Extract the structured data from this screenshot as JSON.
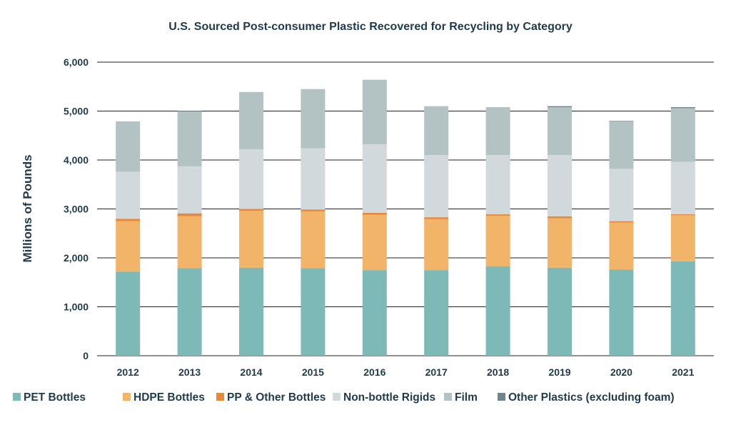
{
  "chart_data": {
    "type": "bar",
    "stacked": true,
    "title": "U.S. Sourced Post-consumer Plastic Recovered for Recycling by Category",
    "ylabel": "Millions of Pounds",
    "xlabel": "",
    "ylim": [
      0,
      6000
    ],
    "yticks": [
      0,
      1000,
      2000,
      3000,
      4000,
      5000,
      6000
    ],
    "ytick_labels": [
      "0",
      "1,000",
      "2,000",
      "3,000",
      "4,000",
      "5,000",
      "6,000"
    ],
    "grid": true,
    "legend_position": "bottom",
    "categories": [
      "2012",
      "2013",
      "2014",
      "2015",
      "2016",
      "2017",
      "2018",
      "2019",
      "2020",
      "2021"
    ],
    "series": [
      {
        "name": "PET Bottles",
        "color": "#7db9b6",
        "values": [
          1720,
          1790,
          1800,
          1790,
          1750,
          1750,
          1830,
          1800,
          1760,
          1930
        ]
      },
      {
        "name": "HDPE Bottles",
        "color": "#f2b469",
        "values": [
          1030,
          1060,
          1160,
          1160,
          1130,
          1040,
          1030,
          1010,
          960,
          940
        ]
      },
      {
        "name": "PP & Other Bottles",
        "color": "#e8893a",
        "values": [
          50,
          60,
          40,
          40,
          40,
          40,
          30,
          40,
          30,
          20
        ]
      },
      {
        "name": "Non-bottle Rigids",
        "color": "#d2d9dc",
        "values": [
          960,
          960,
          1220,
          1250,
          1400,
          1270,
          1210,
          1250,
          1070,
          1070
        ]
      },
      {
        "name": "Film",
        "color": "#b3c2c3",
        "values": [
          1030,
          1130,
          1170,
          1210,
          1320,
          1000,
          980,
          980,
          970,
          1100
        ]
      },
      {
        "name": "Other Plastics (excluding foam)",
        "color": "#6e858c",
        "values": [
          0,
          0,
          0,
          0,
          0,
          0,
          0,
          20,
          10,
          20
        ]
      }
    ]
  }
}
